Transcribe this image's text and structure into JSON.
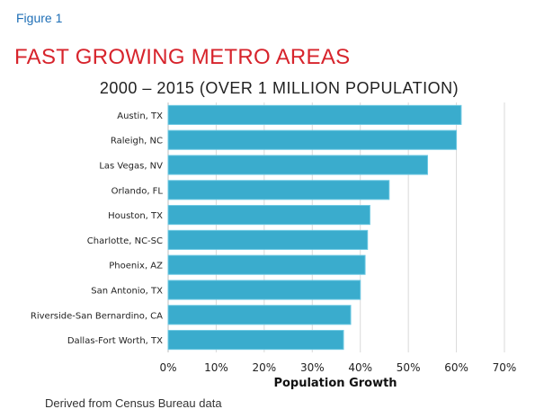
{
  "header": {
    "figure_label": "Figure 1",
    "title": "FAST GROWING METRO AREAS",
    "subtitle": "2000 – 2015 (OVER 1 MILLION POPULATION)"
  },
  "footnote": "Derived from Census Bureau data",
  "colors": {
    "bar": "#3aaccd",
    "bar_edge": "#6cc8e2",
    "title_red": "#d7242c",
    "figure_blue": "#1f6fb6",
    "grid": "#d9d9d9"
  },
  "chart_data": {
    "type": "bar",
    "orientation": "horizontal",
    "title": "2000 – 2015 (OVER 1 MILLION POPULATION)",
    "xlabel": "Population Growth",
    "ylabel": "",
    "xlim": [
      0,
      0.7
    ],
    "x_ticks": [
      "0%",
      "10%",
      "20%",
      "30%",
      "40%",
      "50%",
      "60%",
      "70%"
    ],
    "grid": "vertical",
    "categories": [
      "Austin, TX",
      "Raleigh, NC",
      "Las Vegas, NV",
      "Orlando, FL",
      "Houston, TX",
      "Charlotte, NC-SC",
      "Phoenix, AZ",
      "San Antonio, TX",
      "Riverside-San Bernardino, CA",
      "Dallas-Fort Worth, TX"
    ],
    "values": [
      0.61,
      0.6,
      0.54,
      0.46,
      0.42,
      0.415,
      0.41,
      0.4,
      0.38,
      0.365
    ]
  }
}
